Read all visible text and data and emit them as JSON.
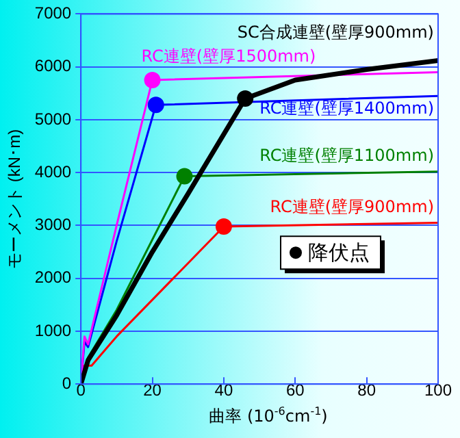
{
  "chart_data": {
    "type": "line",
    "xlabel": "曲率 (10$^{-6}$cm$^{-1}$)",
    "ylabel": "モーメント (kN･m)",
    "xlim": [
      0,
      100
    ],
    "xticks": [
      0,
      20,
      40,
      60,
      80,
      100
    ],
    "ylim": [
      0,
      7000
    ],
    "yticks": [
      0,
      1000,
      2000,
      3000,
      4000,
      5000,
      6000,
      7000
    ],
    "grid": "y",
    "marker": "none",
    "line_style": "solid",
    "series": [
      {
        "name": "SC合成連壁(壁厚900mm)",
        "color": "#000000",
        "x": [
          0,
          2,
          10,
          20,
          30,
          46,
          60,
          80,
          100
        ],
        "values": [
          0,
          450,
          1300,
          2500,
          3600,
          5400,
          5750,
          5950,
          6120
        ]
      },
      {
        "name": "RC連壁(壁厚1500mm)",
        "color": "#ff00ff",
        "x": [
          0,
          1,
          2,
          10,
          20,
          100
        ],
        "values": [
          0,
          900,
          750,
          3000,
          5750,
          5900
        ]
      },
      {
        "name": "RC連壁(壁厚1400mm)",
        "color": "#0000ff",
        "x": [
          0,
          1,
          2,
          10,
          21,
          100
        ],
        "values": [
          0,
          800,
          700,
          2700,
          5280,
          5450
        ]
      },
      {
        "name": "RC連壁(壁厚1100mm)",
        "color": "#008000",
        "x": [
          0,
          2,
          10,
          29,
          100
        ],
        "values": [
          0,
          500,
          1400,
          3930,
          4020
        ]
      },
      {
        "name": "RC連壁(壁厚900mm)",
        "color": "#ff0000",
        "x": [
          0,
          1,
          3,
          10,
          40,
          100
        ],
        "values": [
          0,
          350,
          350,
          900,
          2980,
          3050
        ]
      },
      {
        "name": "降伏点",
        "type": "scatter",
        "marker": "circle",
        "color": "#000000",
        "colors": [
          "#000000",
          "#ff00ff",
          "#0000ff",
          "#008000",
          "#ff0000"
        ],
        "x": [
          46,
          20,
          21,
          29,
          40
        ],
        "values": [
          5400,
          5750,
          5280,
          3930,
          2980
        ]
      }
    ],
    "legend": "bottom right"
  }
}
